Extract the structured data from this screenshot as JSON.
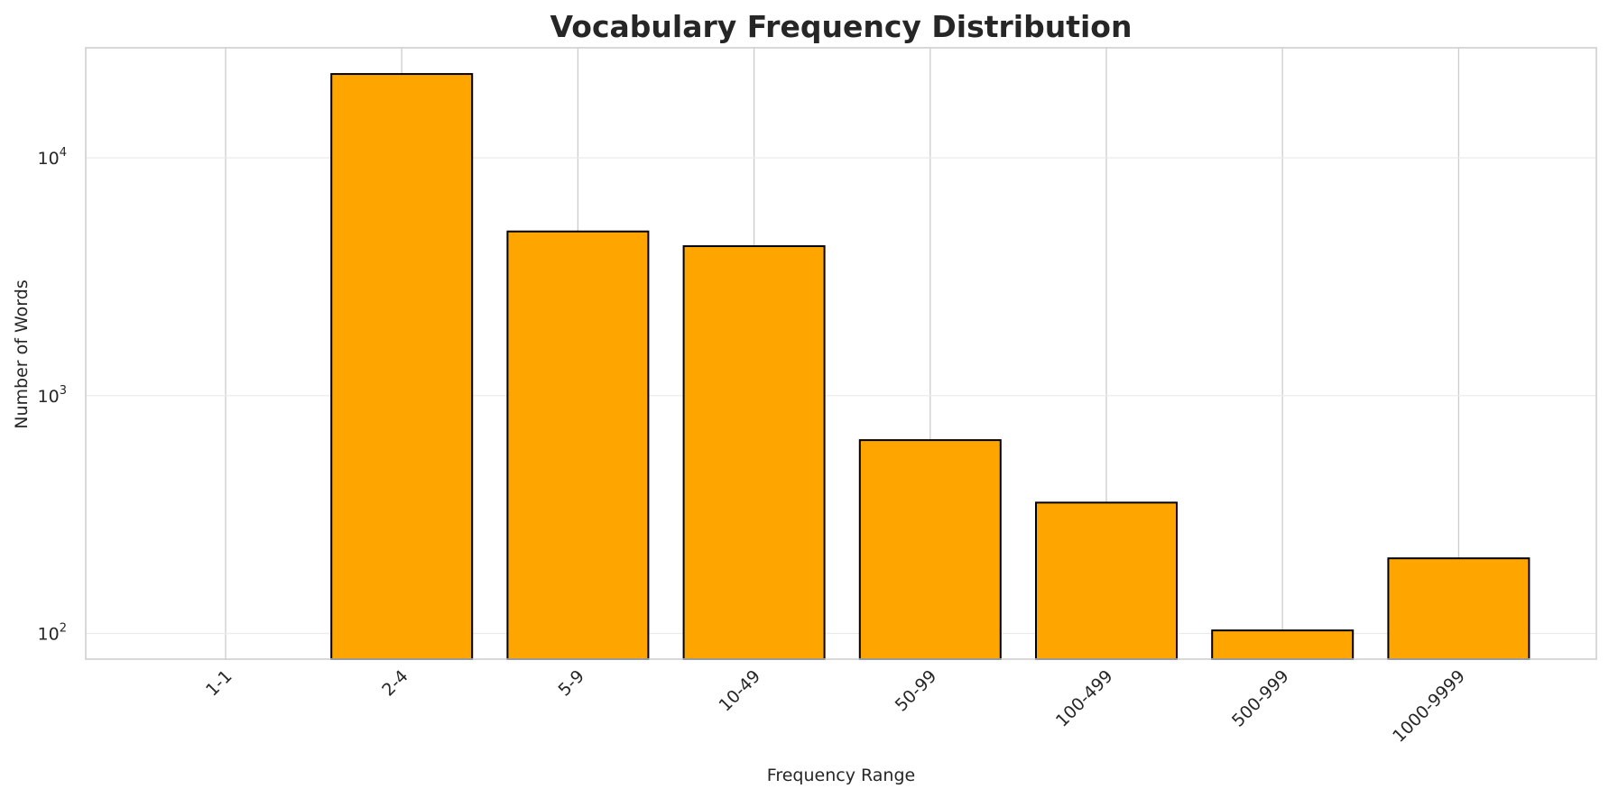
{
  "chart_data": {
    "type": "bar",
    "title": "Vocabulary Frequency Distribution",
    "xlabel": "Frequency Range",
    "ylabel": "Number of Words",
    "yscale": "log",
    "ylim": [
      78,
      29000
    ],
    "yticks": [
      {
        "value": 100,
        "base": "10",
        "exp": "2"
      },
      {
        "value": 1000,
        "base": "10",
        "exp": "3"
      },
      {
        "value": 10000,
        "base": "10",
        "exp": "4"
      }
    ],
    "categories": [
      "1-1",
      "2-4",
      "5-9",
      "10-49",
      "50-99",
      "100-499",
      "500-999",
      "1000-9999"
    ],
    "values": [
      0,
      22500,
      4900,
      4250,
      650,
      355,
      103,
      207
    ],
    "bar_color": "#ffa500",
    "bar_edge_color": "#000000",
    "grid": true,
    "grid_color": "#cccccc"
  }
}
